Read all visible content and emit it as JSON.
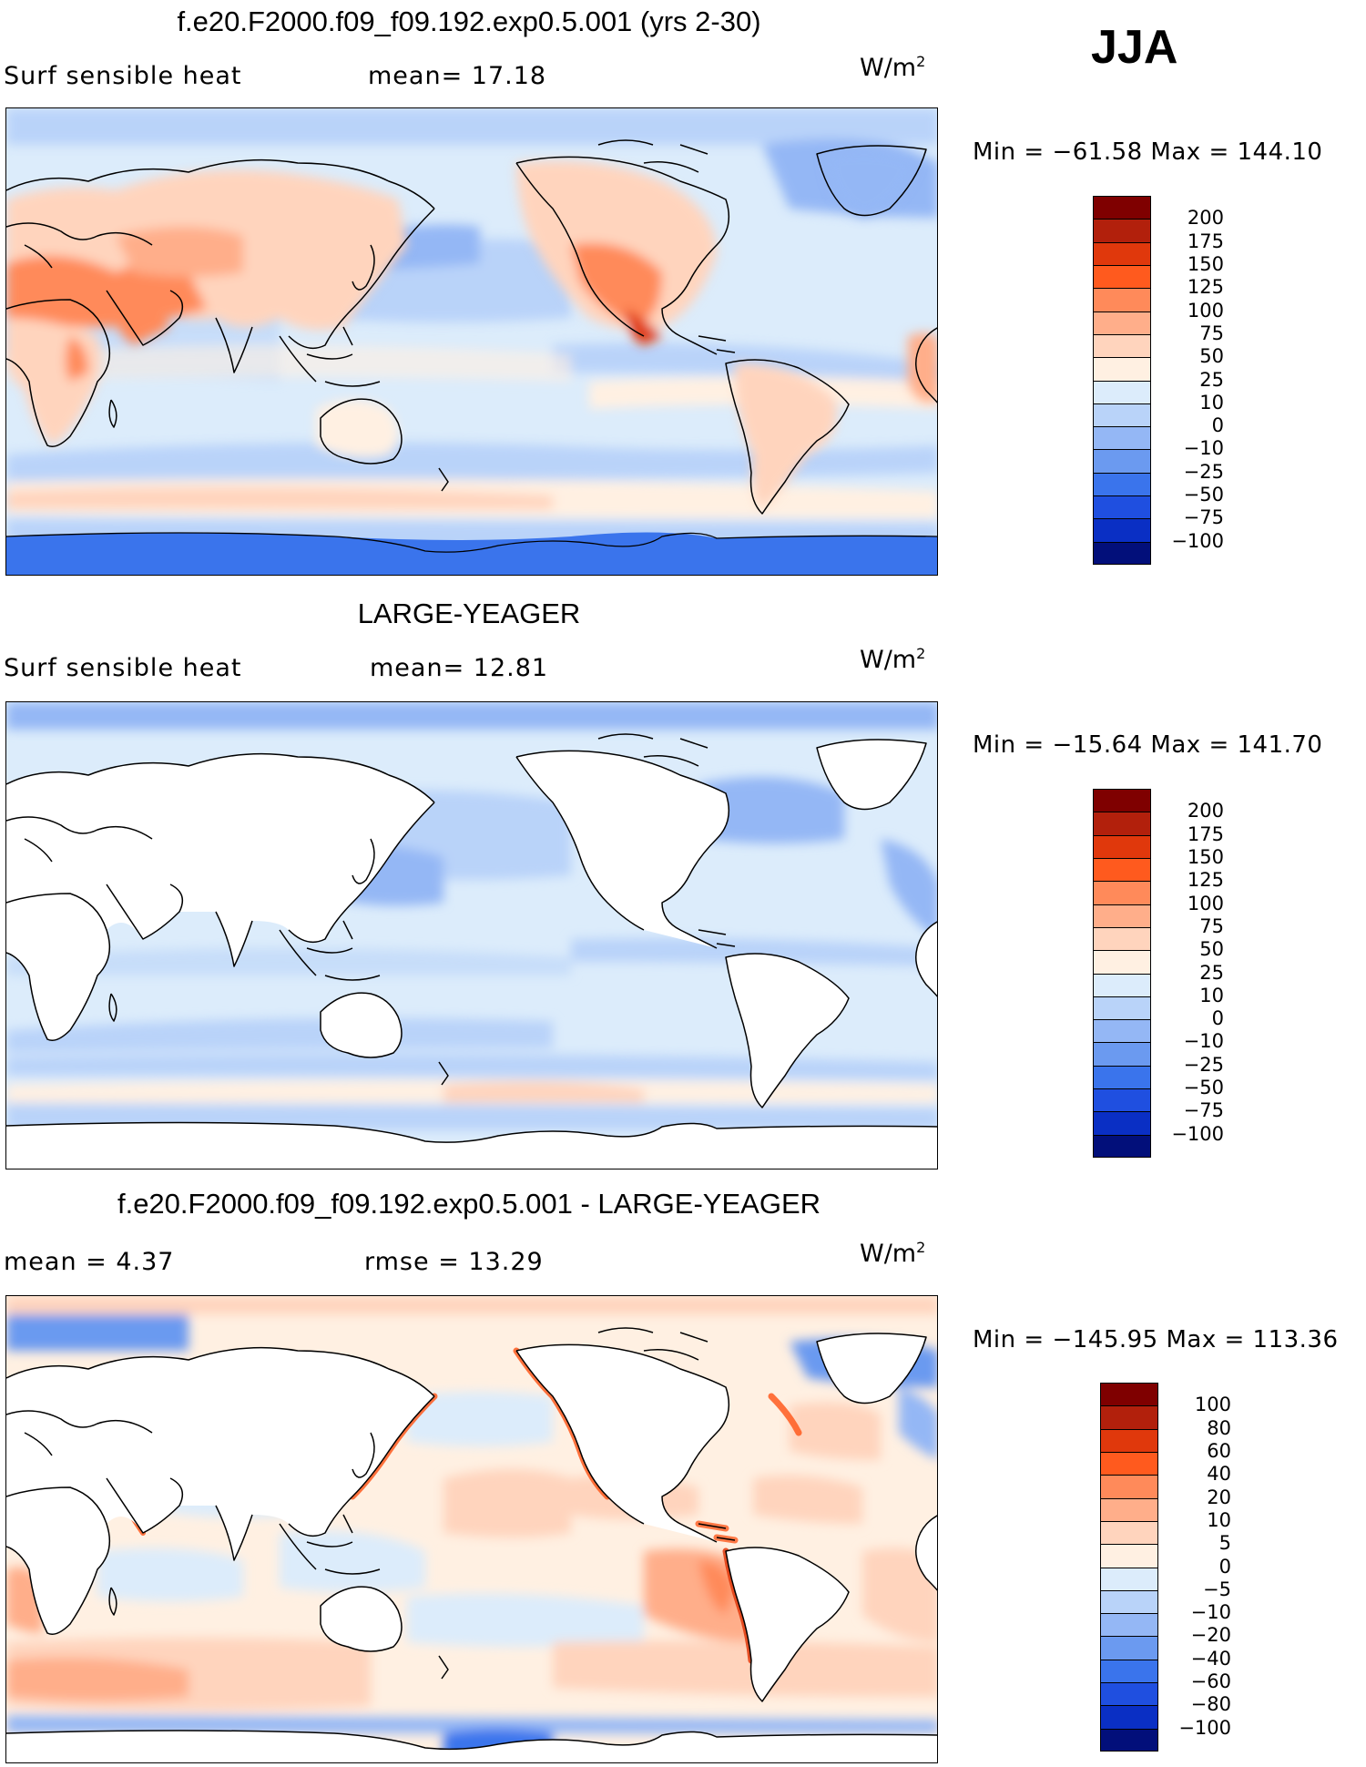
{
  "season": "JJA",
  "panels": [
    {
      "title": "f.e20.F2000.f09_f09.192.exp0.5.001 (yrs 2-30)",
      "left_label": "Surf sensible heat",
      "mid_label": "mean=  17.18",
      "units": "W/m",
      "units_sup": "2",
      "minmax": "Min = −61.58 Max = 144.10",
      "land_filled": true,
      "levels": [
        "200",
        "175",
        "150",
        "125",
        "100",
        "75",
        "50",
        "25",
        "10",
        "0",
        "−10",
        "−25",
        "−50",
        "−75",
        "−100"
      ],
      "colors": [
        "#7f0000",
        "#b2200c",
        "#e0380c",
        "#ff5a1e",
        "#ff8a5a",
        "#ffae8a",
        "#ffd4bd",
        "#fff0e2",
        "#dcecfb",
        "#b9d3f9",
        "#94b7f5",
        "#6b9af0",
        "#3a74ec",
        "#1f4fe0",
        "#0a2fc4",
        "#020f7a"
      ]
    },
    {
      "title": "LARGE-YEAGER",
      "left_label": "Surf sensible heat",
      "mid_label": "mean=  12.81",
      "units": "W/m",
      "units_sup": "2",
      "minmax": "Min = −15.64 Max = 141.70",
      "land_filled": false,
      "levels": [
        "200",
        "175",
        "150",
        "125",
        "100",
        "75",
        "50",
        "25",
        "10",
        "0",
        "−10",
        "−25",
        "−50",
        "−75",
        "−100"
      ],
      "colors": [
        "#7f0000",
        "#b2200c",
        "#e0380c",
        "#ff5a1e",
        "#ff8a5a",
        "#ffae8a",
        "#ffd4bd",
        "#fff0e2",
        "#dcecfb",
        "#b9d3f9",
        "#94b7f5",
        "#6b9af0",
        "#3a74ec",
        "#1f4fe0",
        "#0a2fc4",
        "#020f7a"
      ]
    },
    {
      "title": "f.e20.F2000.f09_f09.192.exp0.5.001 - LARGE-YEAGER",
      "left_label": "mean =   4.37",
      "mid_label": "rmse =   13.29",
      "units": "W/m",
      "units_sup": "2",
      "minmax": "Min = −145.95 Max = 113.36",
      "land_filled": false,
      "levels": [
        "100",
        "80",
        "60",
        "40",
        "20",
        "10",
        "5",
        "0",
        "−5",
        "−10",
        "−20",
        "−40",
        "−60",
        "−80",
        "−100"
      ],
      "colors": [
        "#7f0000",
        "#b2200c",
        "#e0380c",
        "#ff5a1e",
        "#ff8a5a",
        "#ffae8a",
        "#ffd4bd",
        "#fff0e2",
        "#dcecfb",
        "#b9d3f9",
        "#94b7f5",
        "#6b9af0",
        "#3a74ec",
        "#1f4fe0",
        "#0a2fc4",
        "#020f7a"
      ]
    }
  ]
}
